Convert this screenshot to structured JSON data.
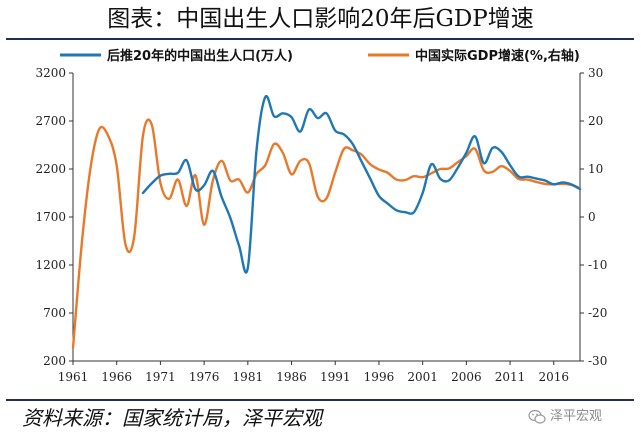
{
  "title": "图表：中国出生人口影响20年后GDP增速",
  "source": "资料来源：国家统计局，泽平宏观",
  "watermark": "泽平宏观",
  "chart_data": {
    "type": "line",
    "title": "图表：中国出生人口影响20年后GDP增速",
    "xlabel": "",
    "ylabel_left": "",
    "ylabel_right": "",
    "legend_position": "top",
    "grid": false,
    "x_range": [
      1961,
      2019
    ],
    "x_ticks": [
      1961,
      1966,
      1971,
      1976,
      1981,
      1986,
      1991,
      1996,
      2001,
      2006,
      2011,
      2016
    ],
    "left_axis": {
      "range": [
        200,
        3200
      ],
      "ticks": [
        200,
        700,
        1200,
        1700,
        2200,
        2700,
        3200
      ]
    },
    "right_axis": {
      "range": [
        -30,
        30
      ],
      "ticks": [
        -30,
        -20,
        -10,
        0,
        10,
        20,
        30
      ]
    },
    "series": [
      {
        "name": "后推20年的中国出生人口(万人)",
        "axis": "left",
        "color": "#1f77b4",
        "x": [
          1969,
          1970,
          1971,
          1972,
          1973,
          1974,
          1975,
          1976,
          1977,
          1978,
          1979,
          1980,
          1981,
          1982,
          1983,
          1984,
          1985,
          1986,
          1987,
          1988,
          1989,
          1990,
          1991,
          1992,
          1993,
          1994,
          1995,
          1996,
          1997,
          1998,
          1999,
          2000,
          2001,
          2002,
          2003,
          2004,
          2005,
          2006,
          2007,
          2008,
          2009,
          2010,
          2011,
          2012,
          2013,
          2014,
          2015,
          2016,
          2017,
          2018,
          2019
        ],
        "y": [
          1950,
          2050,
          2130,
          2150,
          2160,
          2290,
          1990,
          2030,
          2180,
          1910,
          1690,
          1400,
          1170,
          2400,
          2950,
          2750,
          2780,
          2740,
          2590,
          2820,
          2730,
          2780,
          2600,
          2560,
          2460,
          2280,
          2100,
          1920,
          1840,
          1770,
          1750,
          1750,
          1950,
          2250,
          2100,
          2080,
          2210,
          2370,
          2540,
          2260,
          2420,
          2380,
          2240,
          2120,
          2120,
          2100,
          2080,
          2040,
          2060,
          2040,
          1990
        ]
      },
      {
        "name": "中国实际GDP增速(%,右轴)",
        "axis": "right",
        "color": "#e8792a",
        "x": [
          1961,
          1962,
          1963,
          1964,
          1965,
          1966,
          1967,
          1968,
          1969,
          1970,
          1971,
          1972,
          1973,
          1974,
          1975,
          1976,
          1977,
          1978,
          1979,
          1980,
          1981,
          1982,
          1983,
          1984,
          1985,
          1986,
          1987,
          1988,
          1989,
          1990,
          1991,
          1992,
          1993,
          1994,
          1995,
          1996,
          1997,
          1998,
          1999,
          2000,
          2001,
          2002,
          2003,
          2004,
          2005,
          2006,
          2007,
          2008,
          2009,
          2010,
          2011,
          2012,
          2013,
          2014,
          2015,
          2016,
          2017,
          2018,
          2019
        ],
        "y": [
          -27.3,
          -5.6,
          10.2,
          18.3,
          17.0,
          10.7,
          -5.7,
          -4.1,
          16.9,
          19.3,
          7.1,
          3.8,
          7.8,
          2.3,
          8.7,
          -1.6,
          7.6,
          11.7,
          7.6,
          7.8,
          5.1,
          9.0,
          10.8,
          15.2,
          13.4,
          8.9,
          11.7,
          11.2,
          4.2,
          3.9,
          9.3,
          14.2,
          13.9,
          13.0,
          11.0,
          9.9,
          9.2,
          7.8,
          7.7,
          8.5,
          8.3,
          9.1,
          10.0,
          10.1,
          11.4,
          12.7,
          14.2,
          9.7,
          9.4,
          10.6,
          9.6,
          7.9,
          7.8,
          7.3,
          6.9,
          6.8,
          6.9,
          6.7,
          6.0
        ]
      }
    ]
  }
}
